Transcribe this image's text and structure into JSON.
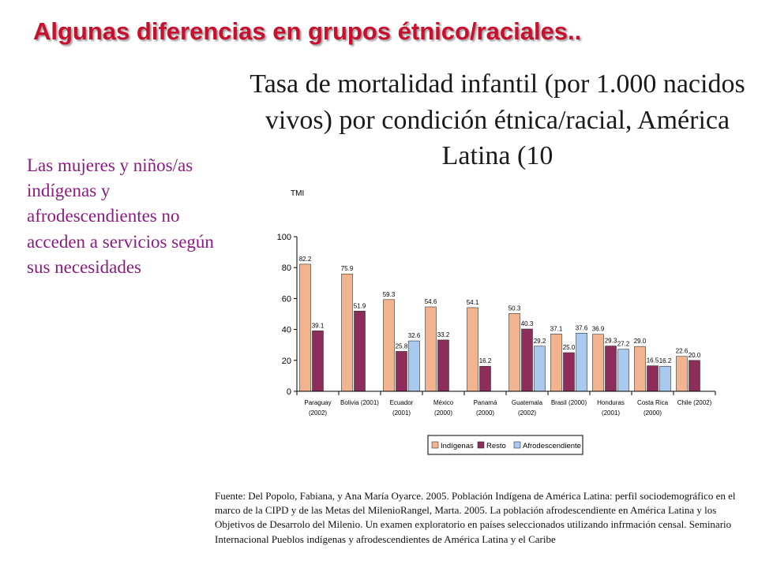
{
  "slide": {
    "title": "Algunas diferencias en grupos étnico/raciales..",
    "chart_heading": "Tasa de mortalidad infantil (por 1.000 nacidos vivos) por condición étnica/racial, América Latina (10",
    "side_text": "Las mujeres y niños/as indígenas y afrodescendientes no acceden a servicios según sus necesidades",
    "source": "Fuente: Del Popolo, Fabiana, y Ana María Oyarce.  2005. Población Indígena de América Latina: perfil sociodemográfico en el marco de la CIPD y de las Metas del MilenioRangel, Marta.  2005. La población afrodescendiente en América Latina y los Objetivos de Desarrolo del Milenio. Un examen exploratorio en países seleccionados utilizando infrmación censal. Seminario Internacional Pueblos indígenas y afrodescendientes de América Latina y el Caribe"
  },
  "chart_data": {
    "type": "bar",
    "ylabel": "TMI",
    "ylim": [
      0,
      100
    ],
    "yticks": [
      0,
      20,
      40,
      60,
      80,
      100
    ],
    "grid": false,
    "legend_position": "bottom",
    "categories": [
      [
        "Paraguay",
        "(2002)"
      ],
      [
        "Bolivia (2001)"
      ],
      [
        "Ecuador",
        "(2001)"
      ],
      [
        "México",
        "(2000)"
      ],
      [
        "Panamá",
        "(2000)"
      ],
      [
        "Guatemala",
        "(2002)"
      ],
      [
        "Brasil (2000)"
      ],
      [
        "Honduras",
        "(2001)"
      ],
      [
        "Costa Rica",
        "(2000)"
      ],
      [
        "Chile (2002)"
      ]
    ],
    "series": [
      {
        "name": "Indígenas",
        "color": "#f2b48f",
        "values": [
          82.2,
          75.9,
          59.3,
          54.6,
          54.1,
          50.3,
          37.1,
          36.9,
          29.0,
          22.6
        ],
        "labels": [
          "82.2",
          "75.9",
          "59.3",
          "54.6",
          "54.1",
          "50.3",
          "37.1",
          "36.9",
          "29.0",
          "22.6"
        ]
      },
      {
        "name": "Resto",
        "color": "#8c2d5c",
        "values": [
          39.1,
          51.9,
          25.8,
          33.2,
          16.2,
          40.3,
          25.0,
          29.3,
          16.5,
          20.0
        ],
        "labels": [
          "39.1",
          "51.9",
          "25.8",
          "33.2",
          "16.2",
          "40.3",
          "25.0",
          "29.3",
          "16.5",
          "20.0"
        ]
      },
      {
        "name": "Afrodescendiente",
        "color": "#a9c9ee",
        "values": [
          null,
          null,
          32.6,
          null,
          null,
          29.2,
          37.6,
          27.2,
          16.2,
          null
        ],
        "labels": [
          null,
          null,
          "32.6",
          null,
          null,
          "29.2",
          "37.6",
          "27.2",
          "16.2",
          null
        ]
      }
    ]
  }
}
